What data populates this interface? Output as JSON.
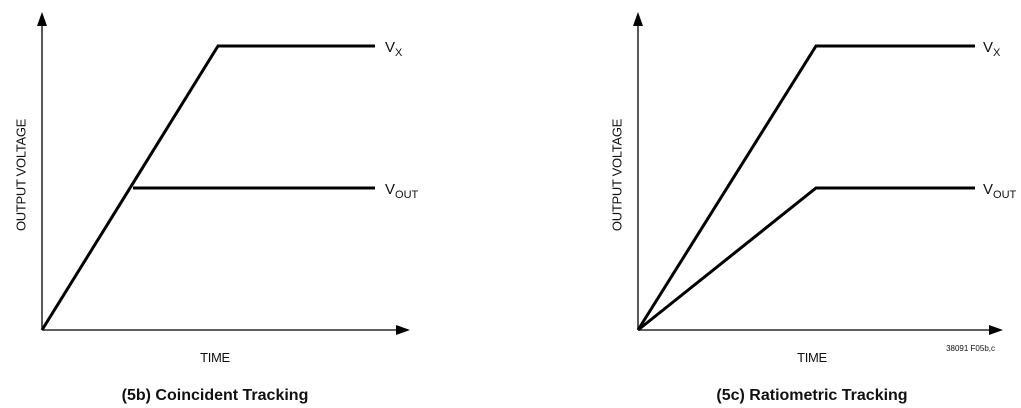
{
  "diagrams": [
    {
      "y_axis_label": "OUTPUT VOLTAGE",
      "x_axis_label": "TIME",
      "lines": [
        {
          "main": "V",
          "sub": "X"
        },
        {
          "main": "V",
          "sub": "OUT"
        }
      ],
      "caption": "(5b) Coincident Tracking"
    },
    {
      "y_axis_label": "OUTPUT VOLTAGE",
      "x_axis_label": "TIME",
      "lines": [
        {
          "main": "V",
          "sub": "X"
        },
        {
          "main": "V",
          "sub": "OUT"
        }
      ],
      "caption": "(5c) Ratiometric Tracking"
    }
  ],
  "figure_id": "38091 F05b,c"
}
